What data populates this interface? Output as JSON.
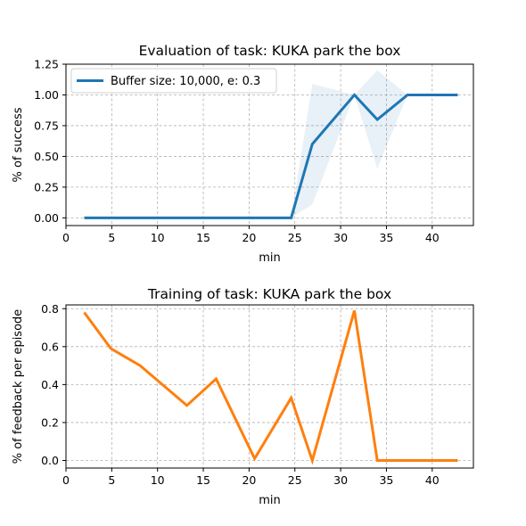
{
  "chart_data": [
    {
      "type": "line",
      "title": "Evaluation of task: KUKA park the box",
      "xlabel": "min",
      "ylabel": "% of success",
      "xlim": [
        0,
        44.5
      ],
      "ylim": [
        -0.0625,
        1.25
      ],
      "xticks": [
        0,
        5,
        10,
        15,
        20,
        25,
        30,
        35,
        40
      ],
      "yticks": [
        0.0,
        0.25,
        0.5,
        0.75,
        1.0,
        1.25
      ],
      "ytick_labels": [
        "0.00",
        "0.25",
        "0.50",
        "0.75",
        "1.00",
        "1.25"
      ],
      "grid": true,
      "legend_position": "upper-left",
      "series": [
        {
          "name": "Buffer size: 10,000, e: 0.3",
          "color": "#1f77b4",
          "x": [
            2,
            24.6,
            26.9,
            31.5,
            34.0,
            37.3,
            42.8
          ],
          "y": [
            0.0,
            0.0,
            0.6,
            1.0,
            0.8,
            1.0,
            1.0
          ],
          "band_lower": [
            0.0,
            0.0,
            0.11,
            1.0,
            0.4,
            1.0,
            1.0
          ],
          "band_upper": [
            0.0,
            0.0,
            1.09,
            1.0,
            1.2,
            1.0,
            1.0
          ],
          "band_color": "#1f77b4"
        }
      ]
    },
    {
      "type": "line",
      "title": "Training of task: KUKA park the box",
      "xlabel": "min",
      "ylabel": "% of feedback per episode",
      "xlim": [
        0,
        44.5
      ],
      "ylim": [
        -0.04,
        0.82
      ],
      "xticks": [
        0,
        5,
        10,
        15,
        20,
        25,
        30,
        35,
        40
      ],
      "yticks": [
        0.0,
        0.2,
        0.4,
        0.6,
        0.8
      ],
      "ytick_labels": [
        "0.0",
        "0.2",
        "0.4",
        "0.6",
        "0.8"
      ],
      "grid": true,
      "series": [
        {
          "color": "#ff7f0e",
          "x": [
            2,
            4.9,
            8.1,
            13.2,
            16.4,
            20.6,
            24.6,
            26.9,
            31.5,
            34.0,
            37.3,
            42.8
          ],
          "y": [
            0.78,
            0.59,
            0.5,
            0.29,
            0.43,
            0.01,
            0.33,
            0.0,
            0.79,
            0.0,
            0.0,
            0.0
          ]
        }
      ]
    }
  ]
}
